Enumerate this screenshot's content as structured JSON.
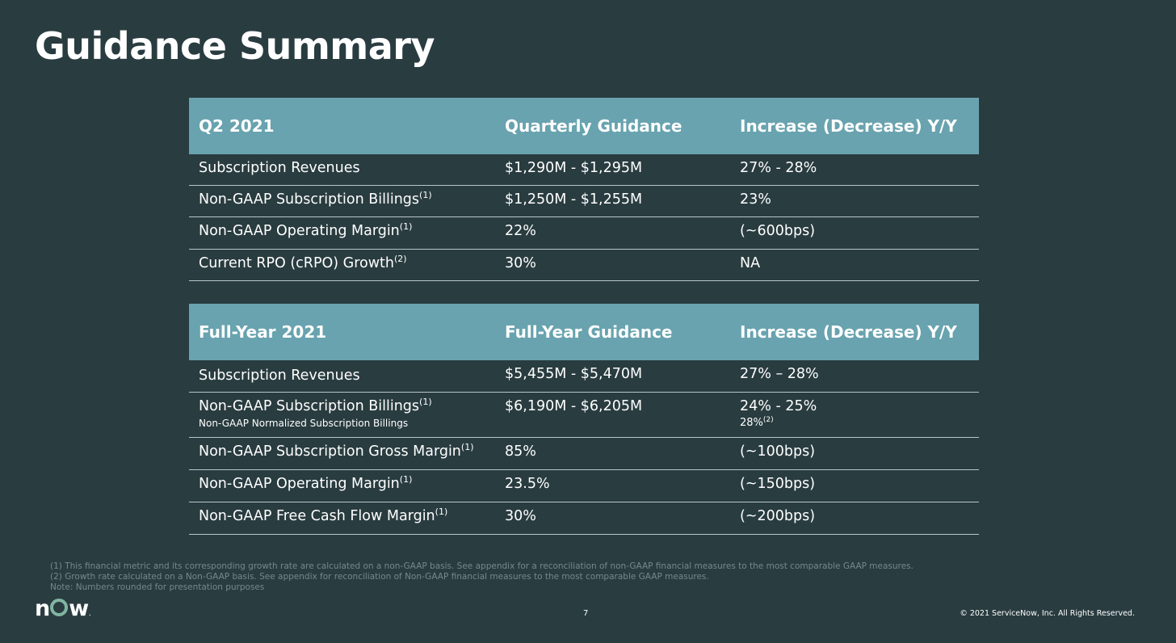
{
  "title": "Guidance Summary",
  "q2_table": {
    "headers": [
      "Q2 2021",
      "Quarterly Guidance",
      "Increase (Decrease) Y/Y"
    ],
    "rows": [
      {
        "label": "Subscription Revenues",
        "sup": "",
        "guidance": "$1,290M - $1,295M",
        "change": "27% - 28%"
      },
      {
        "label": "Non-GAAP Subscription Billings",
        "sup": "(1)",
        "guidance": "$1,250M - $1,255M",
        "change": "23%"
      },
      {
        "label": "Non-GAAP Operating Margin",
        "sup": "(1)",
        "guidance": "22%",
        "change": "(~600bps)"
      },
      {
        "label": "Current RPO (cRPO) Growth",
        "sup": "(2)",
        "guidance": "30%",
        "change": "NA"
      }
    ]
  },
  "fy_table": {
    "headers": [
      "Full-Year 2021",
      "Full-Year Guidance",
      "Increase (Decrease) Y/Y"
    ],
    "rows": [
      {
        "label": "Subscription Revenues",
        "sup": "",
        "guidance": "$5,455M - $5,470M",
        "change": "27% – 28%"
      },
      {
        "label": "Non-GAAP Subscription Billings",
        "sup": "(1)",
        "guidance": "$6,190M - $6,205M",
        "change": "24% - 25%",
        "sub_label": "Non-GAAP Normalized Subscription Billings",
        "sub_change": "28%",
        "sub_change_sup": "(2)"
      },
      {
        "label": "Non-GAAP Subscription Gross Margin",
        "sup": "(1)",
        "guidance": "85%",
        "change": "(~100bps)"
      },
      {
        "label": "Non-GAAP Operating Margin",
        "sup": "(1)",
        "guidance": "23.5%",
        "change": "(~150bps)"
      },
      {
        "label": "Non-GAAP Free Cash Flow Margin",
        "sup": "(1)",
        "guidance": "30%",
        "change": "(~200bps)"
      }
    ]
  },
  "footnotes": [
    "(1) This financial metric and its corresponding growth rate are calculated on a non-GAAP basis. See appendix for a reconciliation of non-GAAP financial measures to the most comparable GAAP measures.",
    "(2) Growth rate calculated on a Non-GAAP basis. See appendix for reconciliation of Non-GAAP financial measures to the most comparable GAAP measures.",
    "Note: Numbers rounded for presentation purposes"
  ],
  "logo": {
    "n": "n",
    "w": "w",
    "mark": "."
  },
  "page_number": "7",
  "copyright": "© 2021 ServiceNow, Inc. All Rights Reserved.",
  "colors": {
    "background": "#293c40",
    "header": "#68a3af",
    "logo_accent": "#81b5a1"
  }
}
